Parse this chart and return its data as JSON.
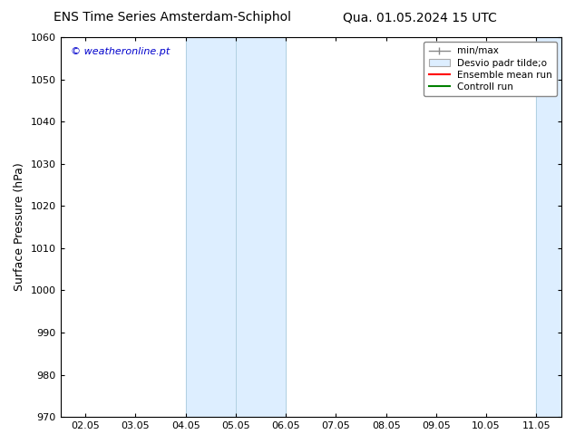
{
  "title_left": "ENS Time Series Amsterdam-Schiphol",
  "title_right": "Qua. 01.05.2024 15 UTC",
  "ylabel": "Surface Pressure (hPa)",
  "watermark": "© weatheronline.pt",
  "watermark_color": "#0000cc",
  "ylim": [
    970,
    1060
  ],
  "yticks": [
    970,
    980,
    990,
    1000,
    1010,
    1020,
    1030,
    1040,
    1050,
    1060
  ],
  "xtick_labels": [
    "02.05",
    "03.05",
    "04.05",
    "05.05",
    "06.05",
    "07.05",
    "08.05",
    "09.05",
    "10.05",
    "11.05"
  ],
  "xtick_positions": [
    0,
    1,
    2,
    3,
    4,
    5,
    6,
    7,
    8,
    9
  ],
  "xlim": [
    -0.5,
    9.5
  ],
  "shaded_bands": [
    {
      "x_start": 2.0,
      "x_end": 4.0
    },
    {
      "x_start": 9.0,
      "x_end": 9.5
    }
  ],
  "band_color": "#ddeeff",
  "band_edge_color": "#aaccdd",
  "background_color": "#ffffff",
  "title_fontsize": 10,
  "axis_label_fontsize": 9,
  "tick_fontsize": 8,
  "watermark_fontsize": 8,
  "legend_fontsize": 7.5
}
